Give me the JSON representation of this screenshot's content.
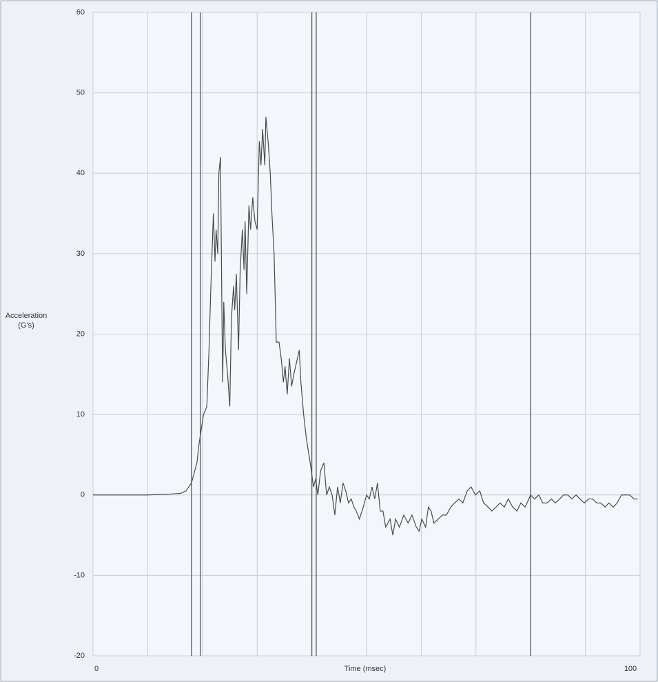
{
  "chart_data": {
    "type": "line",
    "ylabel": [
      "Acceleration",
      "(G's)"
    ],
    "xlabel": "Time (msec)",
    "xlim": [
      0,
      100
    ],
    "ylim": [
      -20,
      60
    ],
    "xticks": [
      0,
      100
    ],
    "x_minor_ticks": [
      10,
      20,
      30,
      40,
      50,
      60,
      70,
      80,
      90
    ],
    "yticks": [
      -20,
      -10,
      0,
      10,
      20,
      30,
      40,
      50,
      60
    ],
    "grid": true,
    "markers": [
      18,
      19.6,
      40,
      40.8,
      80
    ],
    "x": [
      0,
      5,
      10,
      14,
      16,
      17,
      18,
      19,
      19.3,
      20.2,
      20.8,
      21.2,
      21.5,
      21.8,
      22,
      22.3,
      22.5,
      22.8,
      23,
      23.3,
      23.6,
      23.7,
      23.9,
      24.2,
      24.6,
      25,
      25.3,
      25.7,
      25.9,
      26.2,
      26.6,
      26.9,
      27.3,
      27.6,
      27.8,
      28.1,
      28.5,
      28.8,
      29.2,
      29.6,
      30,
      30.4,
      30.7,
      31,
      31.4,
      31.6,
      32,
      32.4,
      32.7,
      33.1,
      33.5,
      34,
      34.4,
      34.8,
      35.1,
      35.5,
      35.9,
      36.3,
      36.7,
      37.2,
      37.7,
      38,
      38.5,
      39,
      39.7,
      40.3,
      40.7,
      41.1,
      41.6,
      42.2,
      42.7,
      43.2,
      43.7,
      44.2,
      44.7,
      45.2,
      45.7,
      46.2,
      46.7,
      47.2,
      47.7,
      48.1,
      48.7,
      49.4,
      50,
      50.5,
      51,
      51.5,
      52,
      52.5,
      53,
      53.5,
      54.3,
      54.8,
      55.3,
      56,
      56.8,
      57.6,
      58.3,
      59.1,
      59.6,
      60.1,
      60.8,
      61.3,
      61.8,
      62.3,
      63.1,
      63.9,
      64.6,
      65.4,
      66.1,
      66.9,
      67.6,
      68.4,
      69.1,
      69.9,
      70.7,
      71.4,
      72.2,
      72.9,
      73.7,
      74.4,
      75.2,
      75.9,
      76.7,
      77.5,
      78.2,
      79,
      80,
      80.7,
      81.5,
      82.2,
      83,
      83.8,
      84.5,
      85.3,
      86,
      86.8,
      87.5,
      88.3,
      89,
      89.8,
      90.6,
      91.3,
      92.1,
      92.8,
      93.6,
      94.3,
      95.1,
      95.8,
      96.6,
      97.4,
      98.1,
      98.9,
      99.6
    ],
    "series": [
      {
        "color": "#4a4a4a",
        "values": [
          0,
          0,
          0,
          0.1,
          0.2,
          0.5,
          1.5,
          4,
          6,
          10,
          11,
          18,
          25,
          31,
          35,
          29,
          33,
          30,
          40,
          42,
          20,
          14,
          24,
          18,
          15,
          11,
          22,
          26,
          23,
          27.5,
          18,
          28,
          33,
          28,
          34,
          25,
          36,
          33,
          37,
          34,
          33,
          44,
          41,
          45.5,
          41,
          47,
          44,
          40,
          35,
          30,
          19,
          19,
          17,
          14,
          16,
          12.5,
          17,
          13.5,
          15,
          16.5,
          18,
          14,
          10,
          7,
          4,
          1,
          2,
          0,
          3,
          4,
          0,
          1,
          0,
          -2.5,
          1,
          -1,
          1.5,
          0.5,
          -1,
          -0.5,
          -1.5,
          -2,
          -3,
          -1.5,
          0,
          -0.5,
          1,
          -0.5,
          1.5,
          -2,
          -2,
          -4,
          -3,
          -5,
          -3,
          -4,
          -2.5,
          -3.5,
          -2.5,
          -4,
          -4.5,
          -3,
          -4,
          -1.5,
          -2,
          -3.5,
          -3,
          -2.5,
          -2.5,
          -1.5,
          -1,
          -0.5,
          -1,
          0.5,
          1,
          0,
          0.5,
          -1,
          -1.5,
          -2,
          -1.5,
          -1,
          -1.5,
          -0.5,
          -1.5,
          -2,
          -1,
          -1.5,
          0,
          -0.5,
          0,
          -1,
          -1,
          -0.5,
          -1,
          -0.5,
          0,
          0,
          -0.5,
          0,
          -0.5,
          -1,
          -0.5,
          -0.5,
          -1,
          -1,
          -1.5,
          -1,
          -1.5,
          -1,
          0,
          0,
          0,
          -0.5,
          -0.5
        ]
      }
    ]
  }
}
